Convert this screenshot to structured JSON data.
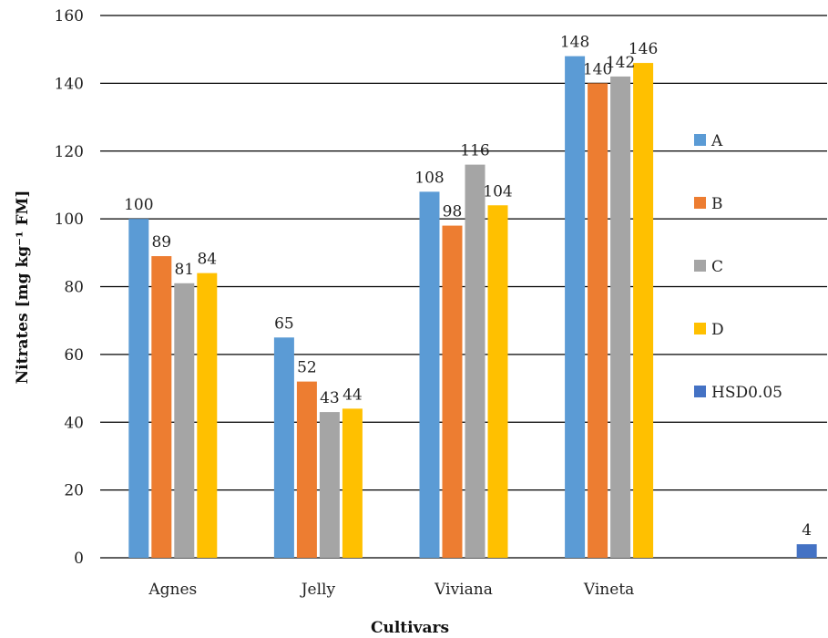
{
  "chart_data": {
    "type": "bar",
    "categories": [
      "Agnes",
      "Jelly",
      "Viviana",
      "Vineta",
      ""
    ],
    "series": [
      {
        "name": "A",
        "color": "#5b9bd5",
        "values": [
          100,
          65,
          108,
          148,
          null
        ]
      },
      {
        "name": "B",
        "color": "#ed7d31",
        "values": [
          89,
          52,
          98,
          140,
          null
        ]
      },
      {
        "name": "C",
        "color": "#a5a5a5",
        "values": [
          81,
          43,
          116,
          142,
          null
        ]
      },
      {
        "name": "D",
        "color": "#ffc000",
        "values": [
          84,
          44,
          104,
          146,
          null
        ]
      },
      {
        "name": "HSD0.05",
        "color": "#4472c4",
        "values": [
          null,
          null,
          null,
          null,
          4
        ]
      }
    ],
    "xlabel": "Cultivars",
    "ylabel": "Nitrates [mg kg⁻¹ FM]",
    "ylim": [
      0,
      160
    ],
    "yticks": [
      0,
      20,
      40,
      60,
      80,
      100,
      120,
      140,
      160
    ],
    "grid": true,
    "legend_position": "right"
  }
}
